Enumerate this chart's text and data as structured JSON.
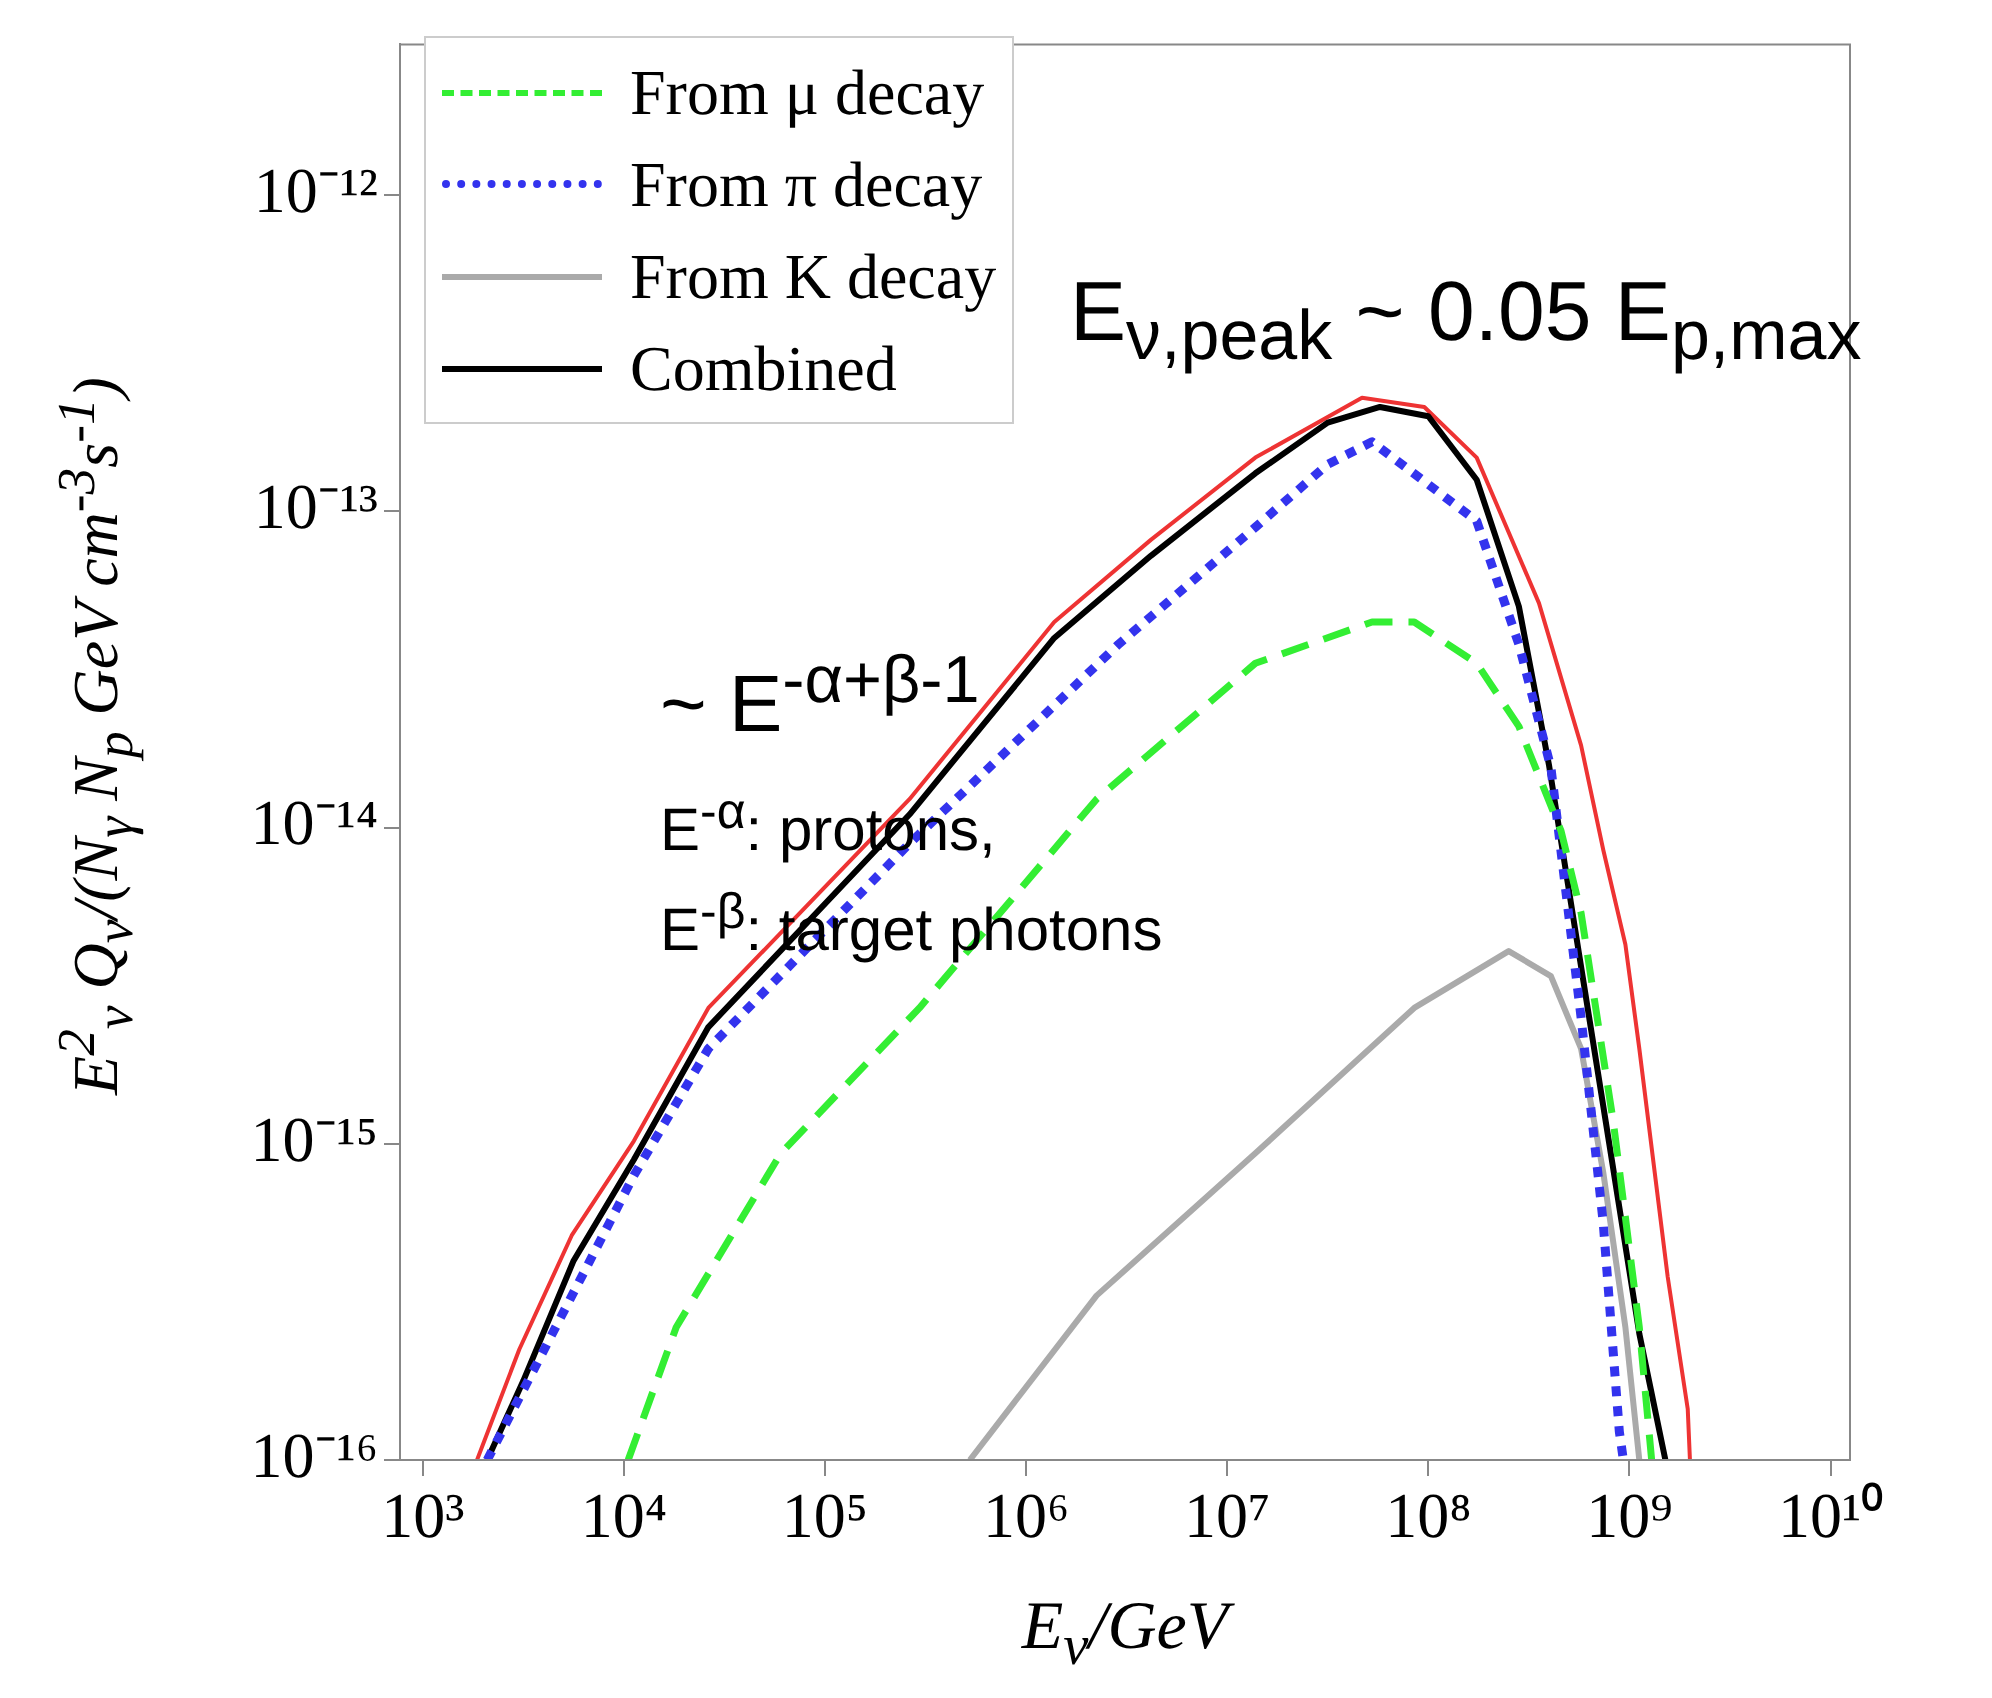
{
  "chart_data": {
    "type": "line",
    "xlabel": "E$_{ν}$/GeV",
    "ylabel": "E$^{2}$$_{ν}$ Q$_{ν}$/(N$_{γ}$ N$_{p}$ GeV cm$^{-3}$s$^{-1}$)",
    "log": "xy",
    "xlim": [
      770,
      12500000000.0
    ],
    "ylim": [
      1e-16,
      3e-12
    ],
    "xticks": [
      {
        "value": 1000,
        "label": "10³"
      },
      {
        "value": 10000,
        "label": "10⁴"
      },
      {
        "value": 100000,
        "label": "10⁵"
      },
      {
        "value": 1000000,
        "label": "10⁶"
      },
      {
        "value": 10000000,
        "label": "10⁷"
      },
      {
        "value": 100000000,
        "label": "10⁸"
      },
      {
        "value": 1000000000,
        "label": "10⁹"
      },
      {
        "value": 10000000000,
        "label": "10¹⁰"
      }
    ],
    "yticks": [
      {
        "value": 1e-16,
        "label": "10⁻¹⁶"
      },
      {
        "value": 1e-15,
        "label": "10⁻¹⁵"
      },
      {
        "value": 1e-14,
        "label": "10⁻¹⁴"
      },
      {
        "value": 1e-13,
        "label": "10⁻¹³"
      },
      {
        "value": 1e-12,
        "label": "10⁻¹²"
      }
    ],
    "grid": false,
    "legend": "top left",
    "marker": "none",
    "annotations": [
      "E$_{ν,peak}$ ~ 0.05 E$_{p,max}$",
      "~ E$^{-α+β-1}$",
      "E$^{-α}$: protons,",
      "E$^{-β}$: target  photons"
    ],
    "series": [
      {
        "name": "From μ decay",
        "color": "#33ee33",
        "line_style": "dashed",
        "x": [
          10500,
          18200,
          60300,
          295000,
          2240000,
          13800000,
          52500000,
          85100000,
          174000000,
          282000000,
          457000000,
          575000000,
          832000000,
          1120000000,
          1290000000
        ],
        "values": [
          1e-16,
          2.63e-16,
          9.33e-16,
          2.69e-15,
          1.23e-14,
          3.31e-14,
          4.47e-14,
          4.47e-14,
          3.31e-14,
          2.09e-14,
          9.77e-15,
          5.37e-15,
          1.17e-15,
          2.63e-16,
          1e-16
        ]
      },
      {
        "name": "From π decay",
        "color": "#3333ee",
        "line_style": "dotted",
        "x": [
          2090,
          11200,
          26300,
          263000,
          2880000,
          13800000,
          31600000,
          52500000,
          174000000,
          282000000,
          407000000,
          575000000,
          741000000,
          891000000,
          933000000
        ],
        "values": [
          1e-16,
          7.94e-16,
          2e-15,
          8.91e-15,
          3.8e-14,
          8.91e-14,
          1.41e-13,
          1.66e-13,
          9.33e-14,
          3.8e-14,
          1.55e-14,
          2.51e-15,
          5.62e-16,
          1.23e-16,
          1e-16
        ]
      },
      {
        "name": "From K decay",
        "color": "#aaaaaa",
        "line_style": "solid",
        "x": [
          525000,
          2240000,
          13800000,
          85100000,
          251000000,
          407000000,
          575000000,
          741000000,
          955000000,
          1120000000
        ],
        "values": [
          1e-16,
          3.31e-16,
          9.33e-16,
          2.69e-15,
          4.07e-15,
          3.39e-15,
          2e-15,
          8.13e-16,
          2.63e-16,
          1e-16
        ]
      },
      {
        "name": "Combined",
        "color": "#000000",
        "line_style": "solid",
        "x": [
          2090,
          3160,
          5620,
          11200,
          26300,
          263000,
          1380000,
          4170000,
          13800000,
          31600000,
          57500000,
          100000000,
          174000000,
          282000000,
          398000000,
          562000000,
          794000000,
          1120000000,
          1510000000
        ],
        "values": [
          1e-16,
          1.78e-16,
          4.27e-16,
          8.91e-16,
          2.34e-15,
          1.1e-14,
          3.98e-14,
          7.24e-14,
          1.32e-13,
          1.91e-13,
          2.14e-13,
          2e-13,
          1.26e-13,
          5.01e-14,
          1.58e-14,
          3.98e-15,
          1e-15,
          2.51e-16,
          1e-16
        ]
      },
      {
        "color": "#ee3333",
        "line_style": "solid",
        "x": [
          1860,
          3020,
          5500,
          11200,
          26300,
          263000,
          1380000,
          4170000,
          13800000,
          46800000,
          95500000,
          174000000,
          355000000,
          575000000,
          741000000,
          955000000,
          1120000000,
          1550000000,
          1950000000,
          2000000000
        ],
        "values": [
          1e-16,
          2.24e-16,
          5.13e-16,
          1.02e-15,
          2.69e-15,
          1.23e-14,
          4.47e-14,
          8.13e-14,
          1.48e-13,
          2.29e-13,
          2.14e-13,
          1.48e-13,
          5.13e-14,
          1.82e-14,
          8.51e-15,
          4.27e-15,
          2e-15,
          3.8e-16,
          1.45e-16,
          1e-16
        ]
      }
    ]
  }
}
